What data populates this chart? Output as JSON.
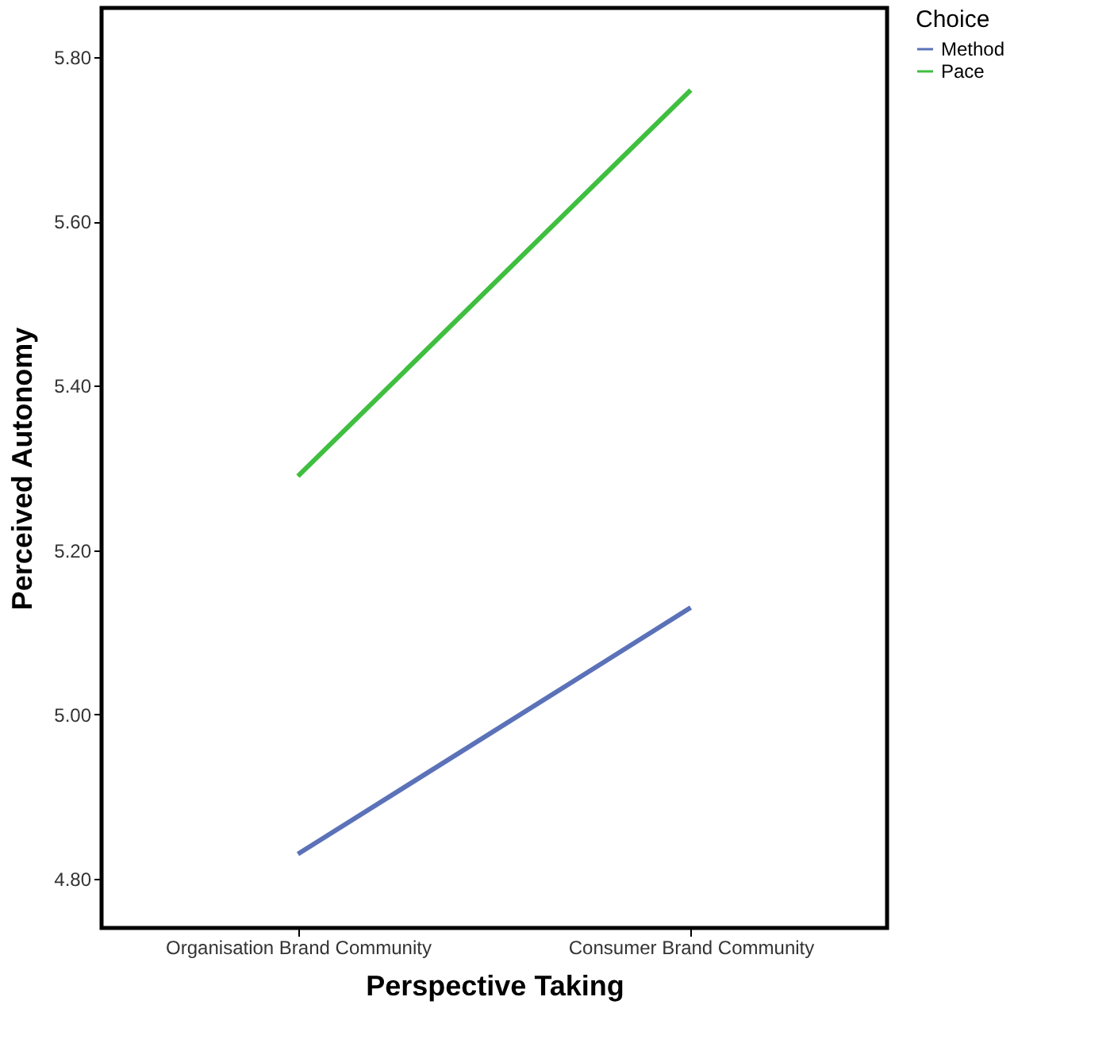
{
  "chart_data": {
    "type": "line",
    "xlabel": "Perspective Taking",
    "ylabel": "Perceived Autonomy",
    "legend_title": "Choice",
    "categories": [
      "Organisation Brand Community",
      "Consumer Brand Community"
    ],
    "series": [
      {
        "name": "Method",
        "color": "#5b72b8",
        "values": [
          4.83,
          5.13
        ]
      },
      {
        "name": "Pace",
        "color": "#3fbf3f",
        "values": [
          5.29,
          5.76
        ]
      }
    ],
    "ylim": [
      4.74,
      5.86
    ],
    "yticks": [
      {
        "value": 4.8,
        "label": "4.80"
      },
      {
        "value": 5.0,
        "label": "5.00"
      },
      {
        "value": 5.2,
        "label": "5.20"
      },
      {
        "value": 5.4,
        "label": "5.40"
      },
      {
        "value": 5.6,
        "label": "5.60"
      },
      {
        "value": 5.8,
        "label": "5.80"
      }
    ],
    "grid": false,
    "legend": "top right",
    "marker": "none",
    "line_style": "solid"
  }
}
